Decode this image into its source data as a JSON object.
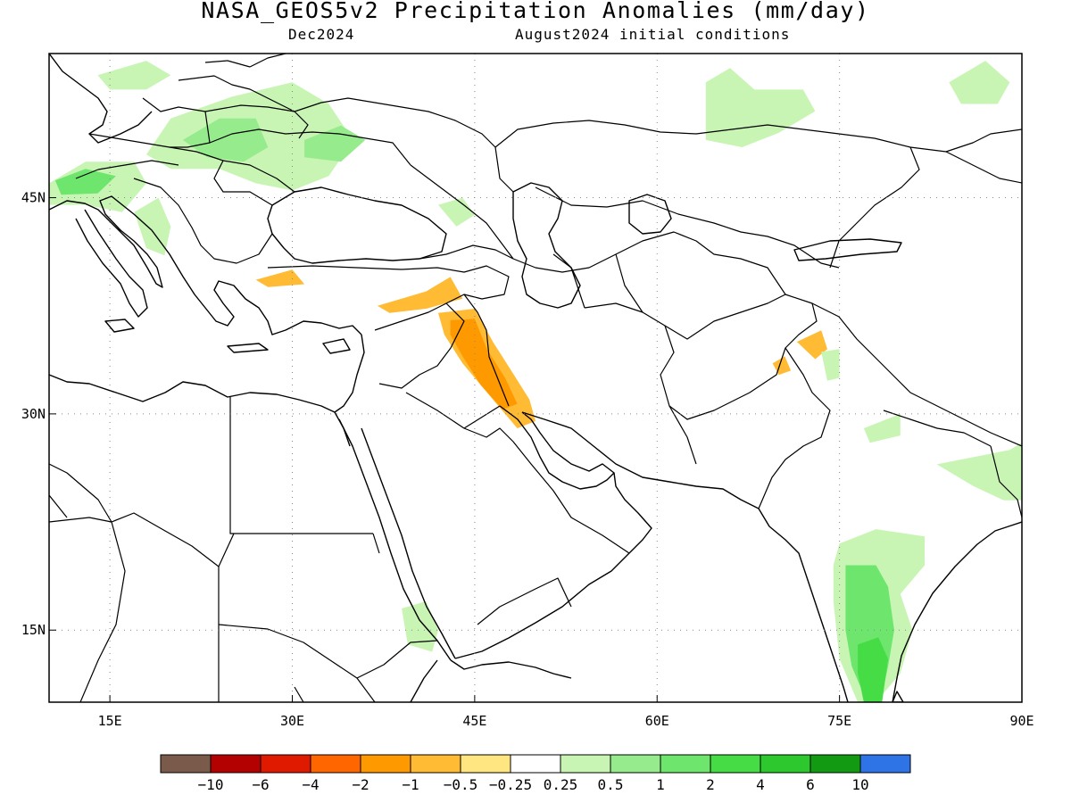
{
  "header": {
    "title": "NASA_GEOS5v2 Precipitation Anomalies (mm/day)",
    "valid_month": "Dec2024",
    "init_conditions": "August2024 initial conditions"
  },
  "map": {
    "lon_range": [
      10,
      90
    ],
    "lat_range": [
      10,
      55
    ],
    "gridlines": "dotted",
    "lon_ticks": [
      {
        "value": 15,
        "label": "15E"
      },
      {
        "value": 30,
        "label": "30E"
      },
      {
        "value": 45,
        "label": "45E"
      },
      {
        "value": 60,
        "label": "60E"
      },
      {
        "value": 75,
        "label": "75E"
      },
      {
        "value": 90,
        "label": "90E"
      }
    ],
    "lat_ticks": [
      {
        "value": 15,
        "label": "15N"
      },
      {
        "value": 30,
        "label": "30N"
      },
      {
        "value": 45,
        "label": "45N"
      }
    ],
    "anomaly_regions": [
      {
        "name": "eastern-europe",
        "level": 0.25,
        "points": [
          [
            18,
            48
          ],
          [
            20,
            50.5
          ],
          [
            25,
            52
          ],
          [
            30,
            53
          ],
          [
            33,
            51.5
          ],
          [
            35,
            49
          ],
          [
            33,
            46.5
          ],
          [
            30,
            45.5
          ],
          [
            27,
            46
          ],
          [
            24,
            47
          ],
          [
            20,
            47
          ]
        ]
      },
      {
        "name": "eastern-europe-core",
        "level": 0.5,
        "points": [
          [
            21,
            49
          ],
          [
            24,
            50.5
          ],
          [
            27,
            50.5
          ],
          [
            28,
            48.5
          ],
          [
            26,
            47.5
          ],
          [
            23,
            47.8
          ]
        ]
      },
      {
        "name": "ukraine-east",
        "level": 0.5,
        "points": [
          [
            31,
            49
          ],
          [
            34,
            50
          ],
          [
            36,
            49
          ],
          [
            34,
            47.5
          ],
          [
            31,
            47.8
          ]
        ]
      },
      {
        "name": "alps",
        "level": 0.25,
        "points": [
          [
            10,
            46
          ],
          [
            13,
            47.5
          ],
          [
            17,
            47.5
          ],
          [
            18,
            46
          ],
          [
            16,
            44
          ],
          [
            13,
            44.5
          ],
          [
            10,
            44.5
          ]
        ]
      },
      {
        "name": "alps-core",
        "level": 1,
        "points": [
          [
            10.5,
            46.2
          ],
          [
            13,
            47
          ],
          [
            15.5,
            46.5
          ],
          [
            14,
            45.3
          ],
          [
            11,
            45.2
          ]
        ]
      },
      {
        "name": "balkans",
        "level": 0.25,
        "points": [
          [
            17,
            44
          ],
          [
            19,
            45
          ],
          [
            20,
            43
          ],
          [
            19.5,
            41
          ],
          [
            18,
            41.5
          ]
        ]
      },
      {
        "name": "scandinavia",
        "level": 0.25,
        "points": [
          [
            14,
            53.5
          ],
          [
            18,
            54.5
          ],
          [
            20,
            53.5
          ],
          [
            18,
            52.5
          ],
          [
            15,
            52.5
          ]
        ]
      },
      {
        "name": "ural-kazakh",
        "level": 0.25,
        "points": [
          [
            64,
            53
          ],
          [
            66,
            54
          ],
          [
            68,
            52.5
          ],
          [
            72,
            52.5
          ],
          [
            73,
            51
          ],
          [
            70,
            49.5
          ],
          [
            67,
            48.5
          ],
          [
            64,
            49
          ]
        ]
      },
      {
        "name": "mongolia",
        "level": 0.25,
        "points": [
          [
            84,
            53
          ],
          [
            87,
            54.5
          ],
          [
            89,
            53
          ],
          [
            88,
            51.5
          ],
          [
            85,
            51.5
          ]
        ]
      },
      {
        "name": "caucasus",
        "level": 0.25,
        "points": [
          [
            42,
            44.5
          ],
          [
            44,
            45
          ],
          [
            45,
            43.8
          ],
          [
            43.5,
            43
          ]
        ]
      },
      {
        "name": "turkey-east",
        "level": -0.5,
        "points": [
          [
            37,
            37.5
          ],
          [
            41,
            38.5
          ],
          [
            43,
            39.5
          ],
          [
            44,
            38
          ],
          [
            41,
            37.3
          ],
          [
            38,
            37
          ]
        ]
      },
      {
        "name": "turkey-west",
        "level": -0.5,
        "points": [
          [
            27,
            39.3
          ],
          [
            30,
            40
          ],
          [
            31,
            39
          ],
          [
            28,
            38.8
          ]
        ]
      },
      {
        "name": "mesopotamia",
        "level": -0.5,
        "points": [
          [
            42,
            37
          ],
          [
            45,
            37.3
          ],
          [
            46.5,
            35
          ],
          [
            48,
            33
          ],
          [
            49.5,
            31
          ],
          [
            50,
            29.5
          ],
          [
            48.5,
            29
          ],
          [
            46.5,
            31
          ],
          [
            44,
            33.5
          ],
          [
            42.5,
            35.5
          ]
        ]
      },
      {
        "name": "mesopotamia-core",
        "level": -1,
        "points": [
          [
            43,
            36.5
          ],
          [
            45,
            36.6
          ],
          [
            46,
            34.5
          ],
          [
            47.5,
            32.5
          ],
          [
            48.5,
            30.7
          ],
          [
            47.3,
            30.3
          ],
          [
            45.5,
            32
          ],
          [
            44,
            34
          ],
          [
            43,
            35.5
          ]
        ]
      },
      {
        "name": "pakistan-north",
        "level": -0.5,
        "points": [
          [
            71.5,
            35
          ],
          [
            73.5,
            35.8
          ],
          [
            74,
            34.5
          ],
          [
            73,
            33.8
          ]
        ]
      },
      {
        "name": "afghan-spot",
        "level": -0.5,
        "points": [
          [
            69.5,
            33.5
          ],
          [
            70.5,
            34
          ],
          [
            71,
            33
          ],
          [
            70,
            32.7
          ]
        ]
      },
      {
        "name": "kashmir",
        "level": 0.25,
        "points": [
          [
            73.5,
            34.3
          ],
          [
            75,
            34.5
          ],
          [
            75,
            32.5
          ],
          [
            74,
            32.3
          ]
        ]
      },
      {
        "name": "nepal",
        "level": 0.25,
        "points": [
          [
            77,
            29
          ],
          [
            80,
            30
          ],
          [
            80,
            28.5
          ],
          [
            77.5,
            28
          ]
        ]
      },
      {
        "name": "bangladesh-ne",
        "level": 0.25,
        "points": [
          [
            83,
            26.5
          ],
          [
            86,
            27
          ],
          [
            89,
            27.5
          ],
          [
            90,
            28
          ],
          [
            90,
            24
          ],
          [
            88.5,
            24
          ],
          [
            86,
            25
          ]
        ]
      },
      {
        "name": "south-india",
        "level": 0.25,
        "points": [
          [
            75,
            21
          ],
          [
            78,
            22
          ],
          [
            82,
            21.5
          ],
          [
            82,
            19.5
          ],
          [
            80,
            17.5
          ],
          [
            81,
            15
          ],
          [
            80,
            12
          ],
          [
            78,
            10
          ],
          [
            76.5,
            10
          ],
          [
            75,
            13
          ],
          [
            74.5,
            17
          ],
          [
            74.5,
            19.5
          ]
        ]
      },
      {
        "name": "south-india-core",
        "level": 1,
        "points": [
          [
            75.5,
            19.5
          ],
          [
            78,
            19.5
          ],
          [
            79,
            18
          ],
          [
            79.5,
            15
          ],
          [
            79,
            12.5
          ],
          [
            78.5,
            10.5
          ],
          [
            77,
            10.5
          ],
          [
            76,
            12.5
          ],
          [
            75.5,
            15
          ]
        ]
      },
      {
        "name": "south-india-deep",
        "level": 2,
        "points": [
          [
            76.5,
            14
          ],
          [
            78.2,
            14.5
          ],
          [
            79,
            13
          ],
          [
            78.5,
            10
          ],
          [
            77,
            10
          ],
          [
            76.5,
            12
          ]
        ]
      },
      {
        "name": "ethiopia",
        "level": 0.25,
        "points": [
          [
            39,
            16.5
          ],
          [
            41,
            17
          ],
          [
            42,
            15
          ],
          [
            41.5,
            13.5
          ],
          [
            39.5,
            14
          ]
        ]
      }
    ]
  },
  "colorbar": {
    "colors": [
      "#7a5a4a",
      "#b30000",
      "#e01a00",
      "#ff6600",
      "#ff9900",
      "#ffbb33",
      "#ffe680",
      "#ffffff",
      "#c8f5b4",
      "#96eb8c",
      "#6ee66e",
      "#46dc46",
      "#2dc82d",
      "#129b12",
      "#2e74e6"
    ],
    "labels": [
      "−10",
      "−6",
      "−4",
      "−2",
      "−1",
      "−0.5",
      "−0.25",
      "0.25",
      "0.5",
      "1",
      "2",
      "4",
      "6",
      "10"
    ]
  }
}
